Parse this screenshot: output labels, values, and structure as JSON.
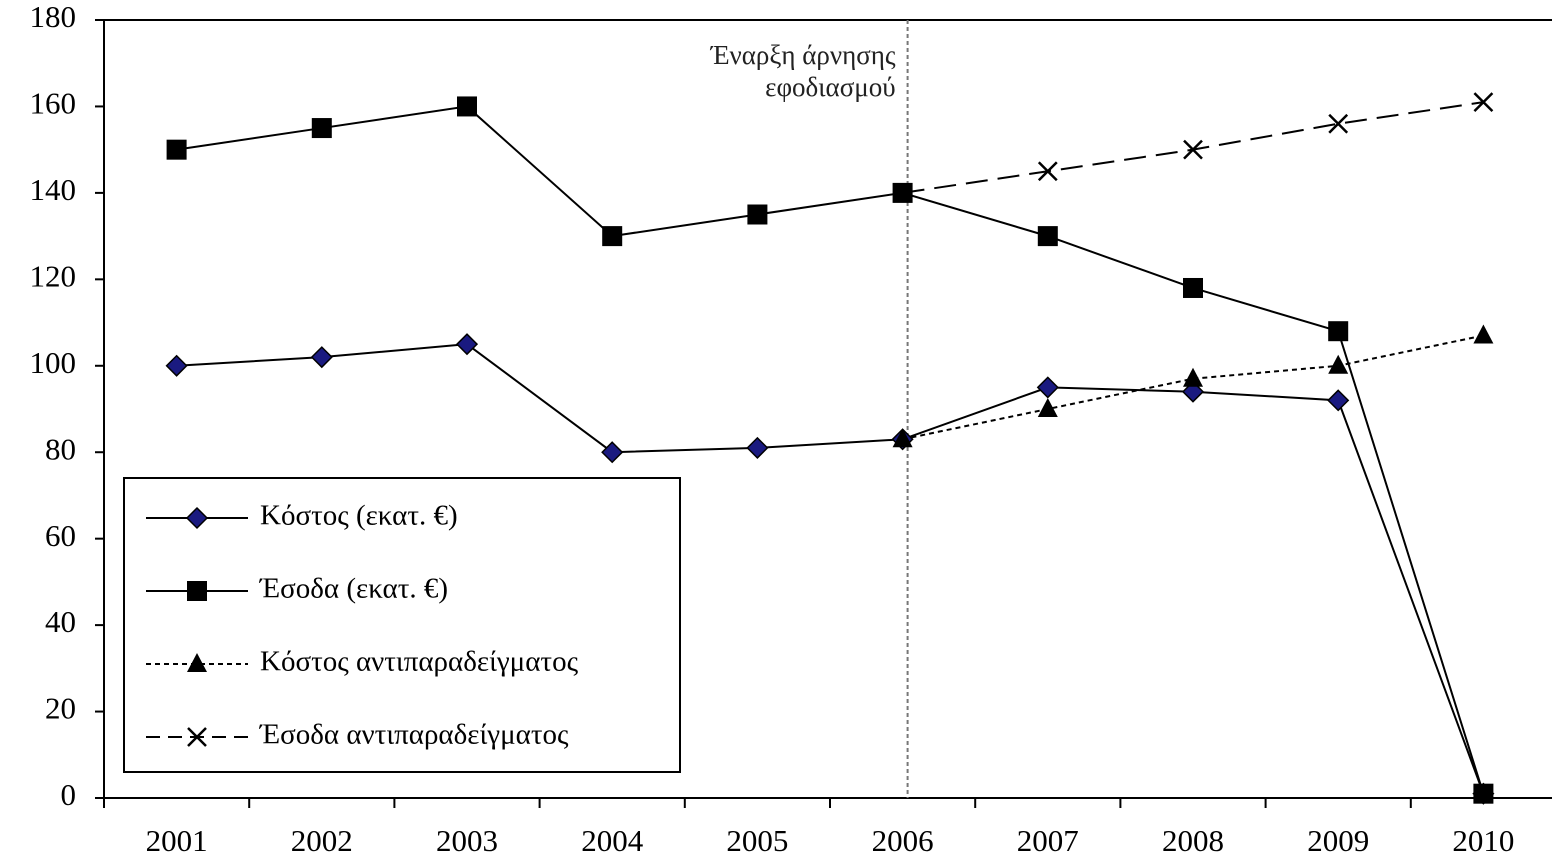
{
  "chart_data": {
    "type": "line",
    "categories": [
      "2001",
      "2002",
      "2003",
      "2004",
      "2005",
      "2006",
      "2007",
      "2008",
      "2009",
      "2010"
    ],
    "series": [
      {
        "name": "Κόστος (εκατ. €)",
        "color": "#1a1a80",
        "marker": "diamond",
        "line_style": "solid",
        "values": [
          100,
          102,
          105,
          80,
          81,
          83,
          95,
          94,
          92,
          1
        ]
      },
      {
        "name": "Έσοδα (εκατ. €)",
        "color": "#000000",
        "marker": "square",
        "line_style": "solid",
        "values": [
          150,
          155,
          160,
          130,
          135,
          140,
          130,
          118,
          108,
          1
        ]
      },
      {
        "name": "Κόστος αντιπαραδείγματος",
        "color": "#000000",
        "marker": "triangle",
        "line_style": "dotted",
        "values": [
          null,
          null,
          null,
          null,
          null,
          83,
          90,
          97,
          100,
          107
        ]
      },
      {
        "name": "Έσοδα αντιπαραδείγματος",
        "color": "#000000",
        "marker": "x",
        "line_style": "dashed",
        "values": [
          null,
          null,
          null,
          null,
          null,
          140,
          145,
          150,
          156,
          161
        ]
      }
    ],
    "annotation": {
      "category": "2006",
      "text": [
        "Έναρξη άρνησης",
        "εφοδιασμού"
      ]
    },
    "ylim": [
      0,
      180
    ],
    "yticks": [
      0,
      20,
      40,
      60,
      80,
      100,
      120,
      140,
      160,
      180
    ],
    "legend": "bottom-left",
    "grid": false
  }
}
